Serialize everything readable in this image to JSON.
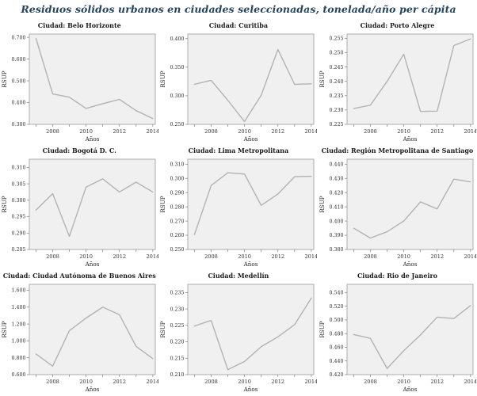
{
  "page_title": "Residuos sólidos urbanos en ciudades seleccionadas, tonelada/año per cápita",
  "colors": {
    "title_text": "#24435c",
    "chart_title_text": "#1a1a1a",
    "plot_bg": "#f0f0f0",
    "plot_border": "#a6a6a6",
    "line": "#b3b3b3",
    "tick_mark": "#7f7f7f",
    "tick_text": "#333333",
    "axis_label_text": "#262626"
  },
  "chart_data": [
    {
      "type": "line",
      "title": "Ciudad: Belo Horizonte",
      "xlabel": "Años",
      "ylabel": "RSUP",
      "x": [
        2007,
        2008,
        2009,
        2010,
        2011,
        2012,
        2013,
        2014
      ],
      "values": [
        0.695,
        0.44,
        0.425,
        0.373,
        0.395,
        0.415,
        0.363,
        0.327
      ],
      "yticks": [
        0.3,
        0.4,
        0.5,
        0.6,
        0.7
      ],
      "xticks": [
        2008,
        2010,
        2012,
        2014
      ],
      "ylim": [
        0.3,
        0.715
      ],
      "xlim": [
        2006.6,
        2014.15
      ],
      "grid": false,
      "legend": false
    },
    {
      "type": "line",
      "title": "Ciudad: Curitiba",
      "xlabel": "Años",
      "ylabel": "RSUP",
      "x": [
        2007,
        2008,
        2009,
        2010,
        2011,
        2012,
        2013,
        2014
      ],
      "values": [
        0.32,
        0.327,
        0.292,
        0.255,
        0.301,
        0.381,
        0.32,
        0.321
      ],
      "yticks": [
        0.25,
        0.3,
        0.35,
        0.4
      ],
      "xticks": [
        2008,
        2010,
        2012,
        2014
      ],
      "ylim": [
        0.25,
        0.408
      ],
      "xlim": [
        2006.6,
        2014.15
      ],
      "grid": false,
      "legend": false
    },
    {
      "type": "line",
      "title": "Ciudad: Porto Alegre",
      "xlabel": "Años",
      "ylabel": "RSUP",
      "x": [
        2007,
        2008,
        2009,
        2010,
        2011,
        2012,
        2013,
        2014
      ],
      "values": [
        0.2305,
        0.2317,
        0.24,
        0.2495,
        0.2295,
        0.2296,
        0.2525,
        0.2548
      ],
      "yticks": [
        0.225,
        0.23,
        0.235,
        0.24,
        0.245,
        0.25,
        0.255
      ],
      "xticks": [
        2008,
        2010,
        2012,
        2014
      ],
      "ylim": [
        0.225,
        0.2565
      ],
      "xlim": [
        2006.6,
        2014.15
      ],
      "grid": false,
      "legend": false
    },
    {
      "type": "line",
      "title": "Ciudad: Bogotá D. C.",
      "xlabel": "Años",
      "ylabel": "RSUP",
      "x": [
        2007,
        2008,
        2009,
        2010,
        2011,
        2012,
        2013,
        2014
      ],
      "values": [
        0.297,
        0.302,
        0.289,
        0.304,
        0.3065,
        0.3025,
        0.3055,
        0.3025
      ],
      "yticks": [
        0.285,
        0.29,
        0.295,
        0.3,
        0.305,
        0.31
      ],
      "xticks": [
        2008,
        2010,
        2012,
        2014
      ],
      "ylim": [
        0.285,
        0.3125
      ],
      "xlim": [
        2006.6,
        2014.15
      ],
      "grid": false,
      "legend": false
    },
    {
      "type": "line",
      "title": "Ciudad: Lima Metropolitana",
      "xlabel": "Años",
      "ylabel": "RSUP",
      "x": [
        2007,
        2008,
        2009,
        2010,
        2011,
        2012,
        2013,
        2014
      ],
      "values": [
        0.2605,
        0.295,
        0.304,
        0.303,
        0.281,
        0.289,
        0.3012,
        0.3015
      ],
      "yticks": [
        0.25,
        0.26,
        0.27,
        0.28,
        0.29,
        0.3,
        0.31
      ],
      "xticks": [
        2008,
        2010,
        2012,
        2014
      ],
      "ylim": [
        0.25,
        0.3135
      ],
      "xlim": [
        2006.6,
        2014.15
      ],
      "grid": false,
      "legend": false
    },
    {
      "type": "line",
      "title": "Ciudad: Región Metropolitana de Santiago",
      "xlabel": "Años",
      "ylabel": "RSUP",
      "x": [
        2007,
        2008,
        2009,
        2010,
        2011,
        2012,
        2013,
        2014
      ],
      "values": [
        0.395,
        0.388,
        0.3925,
        0.4,
        0.4135,
        0.4085,
        0.4295,
        0.4275
      ],
      "yticks": [
        0.38,
        0.39,
        0.4,
        0.41,
        0.42,
        0.43,
        0.44
      ],
      "xticks": [
        2008,
        2010,
        2012,
        2014
      ],
      "ylim": [
        0.38,
        0.4435
      ],
      "xlim": [
        2006.6,
        2014.15
      ],
      "grid": false,
      "legend": false
    },
    {
      "type": "line",
      "title": "Ciudad: Ciudad Autónoma de Buenos Aires",
      "xlabel": "Años",
      "ylabel": "RSUP",
      "x": [
        2007,
        2008,
        2009,
        2010,
        2011,
        2012,
        2013,
        2014
      ],
      "values": [
        0.845,
        0.7,
        1.12,
        1.27,
        1.4,
        1.31,
        0.935,
        0.79
      ],
      "yticks": [
        0.6,
        0.8,
        1.0,
        1.2,
        1.4,
        1.6
      ],
      "xticks": [
        2008,
        2010,
        2012,
        2014
      ],
      "ylim": [
        0.6,
        1.67
      ],
      "xlim": [
        2006.6,
        2014.15
      ],
      "grid": false,
      "legend": false
    },
    {
      "type": "line",
      "title": "Ciudad: Medellín",
      "xlabel": "Años",
      "ylabel": "RSUP",
      "x": [
        2007,
        2008,
        2009,
        2010,
        2011,
        2012,
        2013,
        2014
      ],
      "values": [
        0.2248,
        0.2265,
        0.2115,
        0.214,
        0.2185,
        0.2215,
        0.2252,
        0.2333
      ],
      "yticks": [
        0.21,
        0.215,
        0.22,
        0.225,
        0.23,
        0.235
      ],
      "xticks": [
        2008,
        2010,
        2012,
        2014
      ],
      "ylim": [
        0.21,
        0.2375
      ],
      "xlim": [
        2006.6,
        2014.15
      ],
      "grid": false,
      "legend": false
    },
    {
      "type": "line",
      "title": "Ciudad: Rio de Janeiro",
      "xlabel": "Años",
      "ylabel": "RSUP",
      "x": [
        2007,
        2008,
        2009,
        2010,
        2011,
        2012,
        2013,
        2014
      ],
      "values": [
        0.4785,
        0.473,
        0.429,
        0.455,
        0.478,
        0.504,
        0.502,
        0.521
      ],
      "yticks": [
        0.42,
        0.44,
        0.46,
        0.48,
        0.5,
        0.52,
        0.54
      ],
      "xticks": [
        2008,
        2010,
        2012,
        2014
      ],
      "ylim": [
        0.42,
        0.552
      ],
      "xlim": [
        2006.6,
        2014.15
      ],
      "grid": false,
      "legend": false
    }
  ]
}
